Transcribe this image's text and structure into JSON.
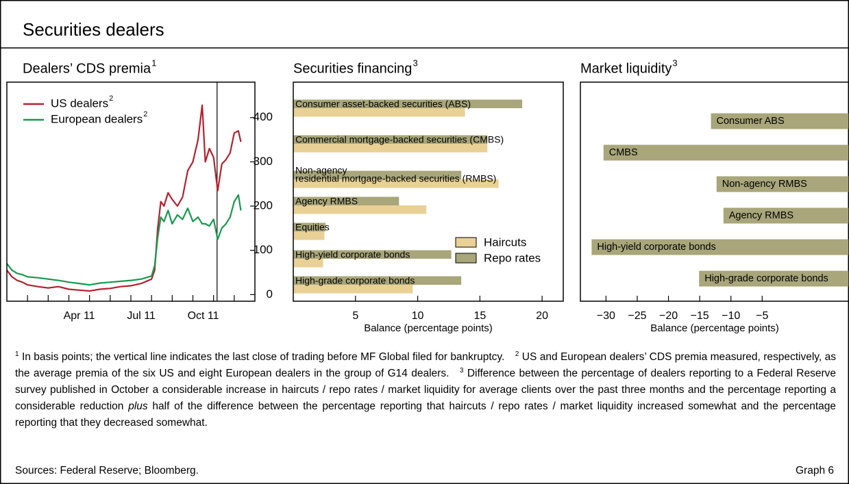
{
  "title": "Securities dealers",
  "chart_data": [
    {
      "type": "line",
      "subtitle": "Dealers’ CDS premia",
      "subtitle_note": "1",
      "x": [
        0,
        0.25,
        0.5,
        0.75,
        1,
        1.5,
        2,
        2.5,
        3,
        3.5,
        4,
        4.5,
        5,
        5.5,
        6,
        6.5,
        7,
        7.15,
        7.3,
        7.45,
        7.6,
        7.8,
        8,
        8.25,
        8.5,
        8.75,
        9,
        9.25,
        9.45,
        9.6,
        9.8,
        10,
        10.2,
        10.4,
        10.6,
        10.8,
        11,
        11.2,
        11.32
      ],
      "xlim": [
        0,
        12
      ],
      "xticks": [
        1,
        2,
        3,
        4,
        5,
        6,
        7,
        8,
        9,
        10,
        11
      ],
      "xtick_labels": [
        {
          "value": 3.5,
          "label": "Apr 11"
        },
        {
          "value": 6.5,
          "label": "Jul 11"
        },
        {
          "value": 9.5,
          "label": "Oct 11"
        }
      ],
      "ylim": [
        -15,
        480
      ],
      "yticks": [
        0,
        100,
        200,
        300,
        400
      ],
      "vline": 10.17,
      "legend": "upper left",
      "series": [
        {
          "name": "US dealers",
          "note": "2",
          "color": "#b3202e",
          "values": [
            55,
            40,
            32,
            28,
            22,
            18,
            15,
            18,
            12,
            10,
            8,
            12,
            14,
            18,
            20,
            25,
            35,
            55,
            150,
            210,
            200,
            230,
            215,
            200,
            220,
            280,
            300,
            350,
            428,
            300,
            330,
            310,
            235,
            295,
            305,
            320,
            365,
            370,
            345
          ]
        },
        {
          "name": "European dealers",
          "note": "2",
          "color": "#16984c",
          "values": [
            70,
            55,
            48,
            45,
            40,
            38,
            35,
            32,
            28,
            25,
            22,
            26,
            28,
            30,
            32,
            35,
            42,
            65,
            130,
            175,
            165,
            190,
            160,
            180,
            170,
            195,
            165,
            175,
            160,
            160,
            155,
            170,
            125,
            150,
            160,
            175,
            210,
            225,
            190
          ]
        }
      ]
    },
    {
      "type": "barh",
      "subtitle": "Securities financing",
      "subtitle_note": "3",
      "categories": [
        "Consumer asset-backed securities (ABS)",
        "Commercial mortgage-backed securities (CMBS)",
        [
          "Non-agency",
          "residential mortgage-backed securities (RMBS)"
        ],
        "Agency RMBS",
        "Equities",
        "High-yield corporate bonds",
        "High-grade corporate bonds"
      ],
      "series": [
        {
          "name": "Haircuts",
          "color": "#e9d095",
          "values": [
            13.8,
            15.6,
            16.5,
            10.7,
            2.5,
            2.4,
            9.6
          ]
        },
        {
          "name": "Repo rates",
          "color": "#a8a67a",
          "values": [
            18.4,
            15.6,
            13.5,
            8.5,
            2.6,
            12.7,
            13.5
          ]
        }
      ],
      "xlim": [
        0,
        21.7
      ],
      "xticks": [
        5,
        10,
        15,
        20
      ],
      "xlabel": "Balance (percentage points)",
      "legend": "lower right"
    },
    {
      "type": "barh",
      "subtitle": "Market liquidity",
      "subtitle_note": "3",
      "categories": [
        "Consumer ABS",
        "CMBS",
        "Non-agency RMBS",
        "Agency RMBS",
        "High-yield corporate bonds",
        "High-grade corporate bonds"
      ],
      "values": [
        -13.2,
        -30.4,
        -12.3,
        -11.2,
        -32.3,
        -15.1
      ],
      "color": "#a8a67a",
      "xlim": [
        -34.1,
        8.9
      ],
      "xticks": [
        {
          "value": -30,
          "label": "−30"
        },
        {
          "value": -25,
          "label": "−25"
        },
        {
          "value": -20,
          "label": "−20"
        },
        {
          "value": -15,
          "label": "−15"
        },
        {
          "value": -10,
          "label": "−10"
        },
        {
          "value": -5,
          "label": "−5"
        }
      ],
      "xlabel": "Balance (percentage points)"
    }
  ],
  "footnotes": [
    {
      "mark": "1",
      "text": "In basis points; the vertical line indicates the last close of trading before MF Global filed for bankruptcy."
    },
    {
      "mark": "2",
      "text": "US and European dealers’ CDS premia measured, respectively, as the average premia of the six US and eight European dealers in the group of G14 dealers."
    },
    {
      "mark": "3",
      "text": "Difference between the percentage of dealers reporting to a Federal Reserve survey published in October a considerable increase in haircuts / repo rates / market liquidity for average clients over the past three months and the percentage reporting a considerable reduction",
      "emphasis": "plus",
      "text_after": "half of the difference between the percentage reporting that haircuts / repo rates / market liquidity increased somewhat and the percentage reporting that they decreased somewhat."
    }
  ],
  "sources": "Sources: Federal Reserve; Bloomberg.",
  "graph_label": "Graph 6"
}
